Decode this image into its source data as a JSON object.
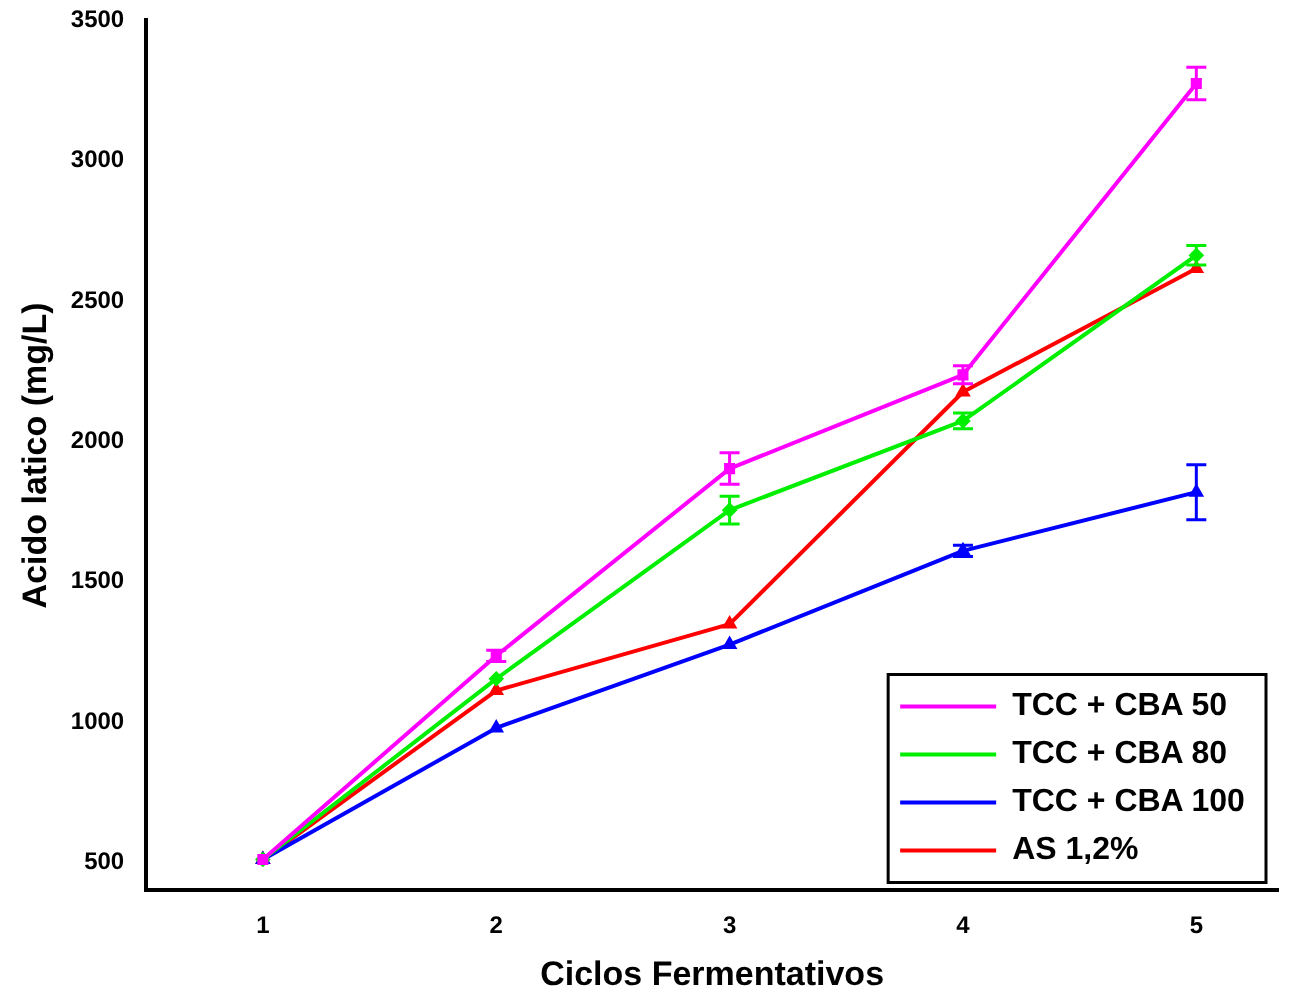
{
  "chart_data": {
    "type": "line",
    "xlabel": "Ciclos Fermentativos",
    "ylabel": "Acido latico (mg/L)",
    "x": [
      1,
      2,
      3,
      4,
      5
    ],
    "xlim": [
      0.5,
      5.35
    ],
    "xticks": [
      1,
      2,
      3,
      4,
      5
    ],
    "ylim": [
      400,
      3500
    ],
    "yticks": [
      500,
      1000,
      1500,
      2000,
      2500,
      3000,
      3500
    ],
    "grid": false,
    "legend": "bottom right",
    "line_style": "solid",
    "series": [
      {
        "name": "TCC + CBA 50",
        "color": "#ff00ff",
        "marker": "square",
        "values": [
          510,
          1236,
          1903,
          2237,
          3275
        ],
        "errors": [
          null,
          20,
          56,
          32,
          58
        ]
      },
      {
        "name": "TCC + CBA 80",
        "color": "#00ee00",
        "marker": "diamond",
        "values": [
          510,
          1154,
          1755,
          2073,
          2663
        ],
        "errors": [
          null,
          null,
          49,
          28,
          35
        ]
      },
      {
        "name": "TCC + CBA 100",
        "color": "#0000ff",
        "marker": "triangle",
        "values": [
          510,
          979,
          1276,
          1610,
          1819
        ],
        "errors": [
          null,
          null,
          null,
          20,
          98
        ]
      },
      {
        "name": "AS 1,2%",
        "color": "#ff0000",
        "marker": "triangle",
        "values": [
          510,
          1112,
          1349,
          2176,
          2616
        ]
      }
    ]
  }
}
